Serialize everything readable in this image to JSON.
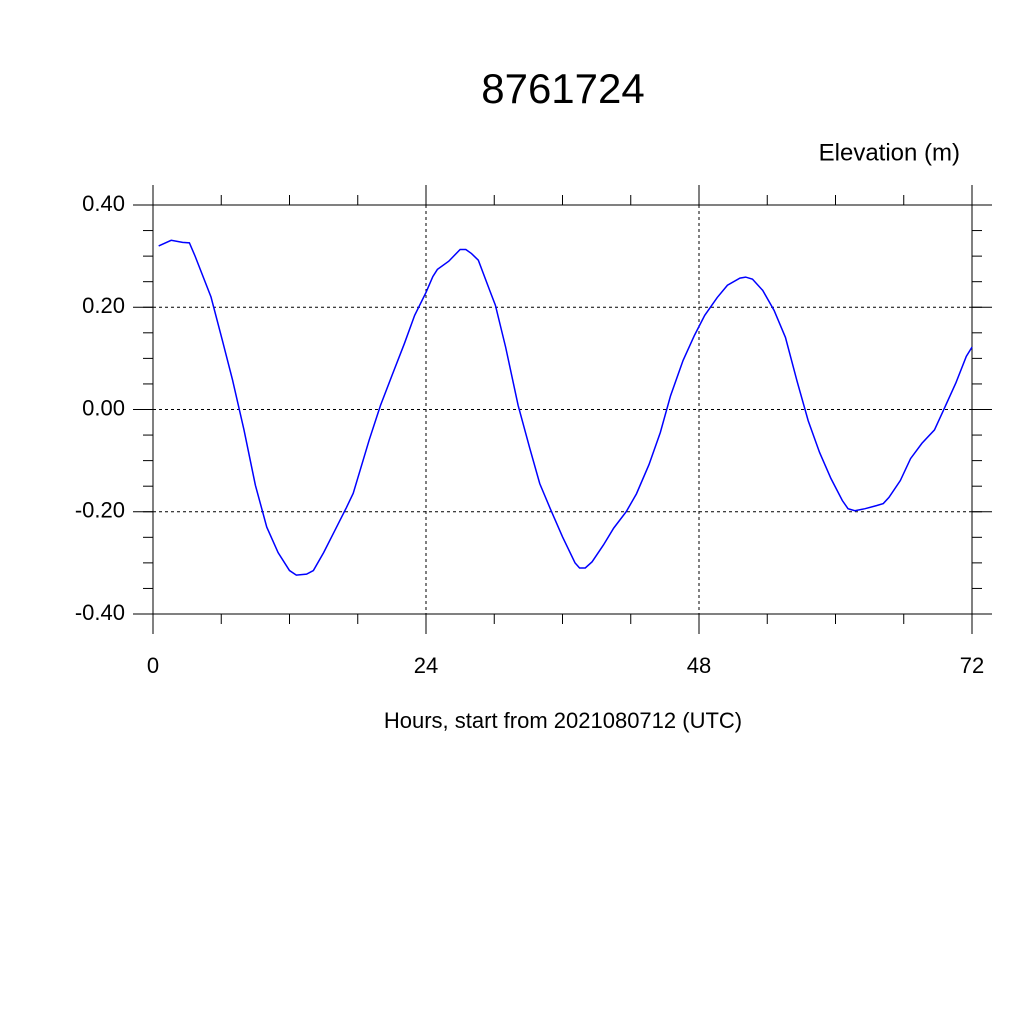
{
  "chart_data": {
    "type": "line",
    "title": "8761724",
    "ylabel": "Elevation (m)",
    "xlabel": "Hours, start from 2021080712 (UTC)",
    "xlim": [
      0,
      72
    ],
    "xticks": [
      0,
      24,
      48,
      72
    ],
    "ylim": [
      -0.4,
      0.4
    ],
    "yticks": [
      {
        "value": -0.4,
        "label": "-0.40"
      },
      {
        "value": -0.2,
        "label": "-0.20"
      },
      {
        "value": 0,
        "label": "0.00"
      },
      {
        "value": 0.2,
        "label": "0.20"
      },
      {
        "value": 0.4,
        "label": "0.40"
      }
    ],
    "grid": true,
    "x": [
      0.5,
      1.6,
      2.6,
      3.2,
      3.7,
      5.1,
      6.1,
      7.0,
      8.0,
      9.0,
      10.0,
      11.0,
      12.0,
      12.6,
      13.5,
      14.1,
      15.0,
      16.0,
      17.0,
      17.6,
      19.0,
      20.0,
      21.0,
      22.1,
      23.0,
      24.0,
      24.6,
      25.0,
      26.0,
      27.0,
      27.5,
      28.0,
      28.6,
      29.6,
      30.1,
      31.0,
      32.1,
      33.1,
      34.0,
      35.0,
      36.0,
      37.1,
      37.5,
      38.0,
      38.6,
      39.6,
      40.5,
      41.6,
      42.5,
      43.6,
      44.6,
      45.5,
      46.6,
      47.6,
      48.5,
      49.6,
      50.5,
      51.6,
      52.1,
      52.7,
      53.6,
      54.6,
      55.6,
      56.6,
      57.6,
      58.6,
      59.6,
      60.6,
      61.1,
      61.7,
      62.6,
      63.6,
      64.2,
      64.7,
      65.7,
      66.6,
      67.6,
      68.7,
      69.5,
      70.6,
      71.5,
      72.0
    ],
    "series": [
      {
        "color": "#0000ff",
        "values": [
          0.32,
          0.331,
          0.327,
          0.326,
          0.3,
          0.22,
          0.135,
          0.057,
          -0.04,
          -0.148,
          -0.23,
          -0.28,
          -0.315,
          -0.324,
          -0.322,
          -0.315,
          -0.28,
          -0.236,
          -0.192,
          -0.164,
          -0.06,
          0.008,
          0.066,
          0.129,
          0.184,
          0.229,
          0.26,
          0.274,
          0.29,
          0.313,
          0.313,
          0.305,
          0.292,
          0.233,
          0.204,
          0.122,
          0.008,
          -0.074,
          -0.145,
          -0.198,
          -0.249,
          -0.3,
          -0.31,
          -0.31,
          -0.298,
          -0.265,
          -0.232,
          -0.2,
          -0.165,
          -0.108,
          -0.045,
          0.027,
          0.096,
          0.145,
          0.184,
          0.219,
          0.243,
          0.257,
          0.259,
          0.255,
          0.233,
          0.194,
          0.141,
          0.057,
          -0.022,
          -0.084,
          -0.135,
          -0.178,
          -0.194,
          -0.198,
          -0.194,
          -0.188,
          -0.184,
          -0.172,
          -0.139,
          -0.096,
          -0.066,
          -0.04,
          -0.001,
          0.053,
          0.104,
          0.122
        ]
      }
    ]
  }
}
